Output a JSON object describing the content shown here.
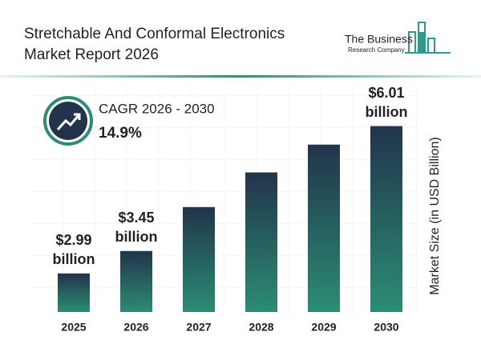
{
  "chart_data": {
    "type": "bar",
    "title": "Stretchable And Conformal Electronics Market Report 2026",
    "brand": {
      "name": "The Business",
      "tagline": "Research Company"
    },
    "cagr": {
      "label": "CAGR 2026 - 2030",
      "value": "14.9%"
    },
    "y_label": "Market Size (in USD Billion)",
    "categories": [
      "2025",
      "2026",
      "2027",
      "2028",
      "2029",
      "2030"
    ],
    "values": [
      2.99,
      3.45,
      4.35,
      5.06,
      5.63,
      6.01
    ],
    "value_labels": [
      "$2.99 billion",
      "$3.45 billion",
      null,
      null,
      null,
      "$6.01 billion"
    ],
    "gradient": [
      "#22344b",
      "#2b8d74"
    ],
    "ylim": [
      2.2,
      6.2
    ]
  }
}
